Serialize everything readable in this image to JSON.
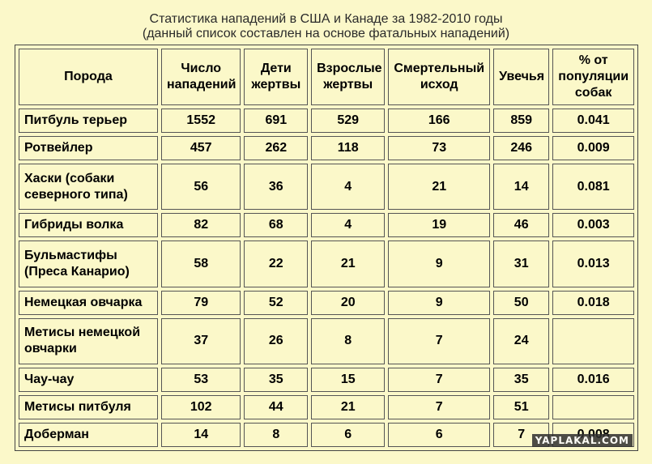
{
  "title": {
    "line1": "Статистика нападений в США и Канаде за 1982-2010 годы",
    "line2": "(данный список составлен на основе фатальных нападений)"
  },
  "headers": [
    "Порода",
    "Число нападений",
    "Дети жертвы",
    "Взрослые жертвы",
    "Смертельный исход",
    "Увечья",
    "% от популяции собак"
  ],
  "rows": [
    {
      "breed": "Питбуль терьер",
      "attacks": "1552",
      "children": "691",
      "adults": "529",
      "deaths": "166",
      "maimings": "859",
      "percent": "0.041"
    },
    {
      "breed": "Ротвейлер",
      "attacks": "457",
      "children": "262",
      "adults": "118",
      "deaths": "73",
      "maimings": "246",
      "percent": "0.009"
    },
    {
      "breed": "Хаски (собаки северного типа)",
      "attacks": "56",
      "children": "36",
      "adults": "4",
      "deaths": "21",
      "maimings": "14",
      "percent": "0.081"
    },
    {
      "breed": "Гибриды волка",
      "attacks": "82",
      "children": "68",
      "adults": "4",
      "deaths": "19",
      "maimings": "46",
      "percent": "0.003"
    },
    {
      "breed": "Бульмастифы (Преса Канарио)",
      "attacks": "58",
      "children": "22",
      "adults": "21",
      "deaths": "9",
      "maimings": "31",
      "percent": "0.013"
    },
    {
      "breed": "Немецкая овчарка",
      "attacks": "79",
      "children": "52",
      "adults": "20",
      "deaths": "9",
      "maimings": "50",
      "percent": "0.018"
    },
    {
      "breed": "Метисы немецкой овчарки",
      "attacks": "37",
      "children": "26",
      "adults": "8",
      "deaths": "7",
      "maimings": "24",
      "percent": ""
    },
    {
      "breed": "Чау-чау",
      "attacks": "53",
      "children": "35",
      "adults": "15",
      "deaths": "7",
      "maimings": "35",
      "percent": "0.016"
    },
    {
      "breed": "Метисы питбуля",
      "attacks": "102",
      "children": "44",
      "adults": "21",
      "deaths": "7",
      "maimings": "51",
      "percent": ""
    },
    {
      "breed": "Доберман",
      "attacks": "14",
      "children": "8",
      "adults": "6",
      "deaths": "6",
      "maimings": "7",
      "percent": "0.008"
    }
  ],
  "watermark": "YAPLAKAL.COM"
}
